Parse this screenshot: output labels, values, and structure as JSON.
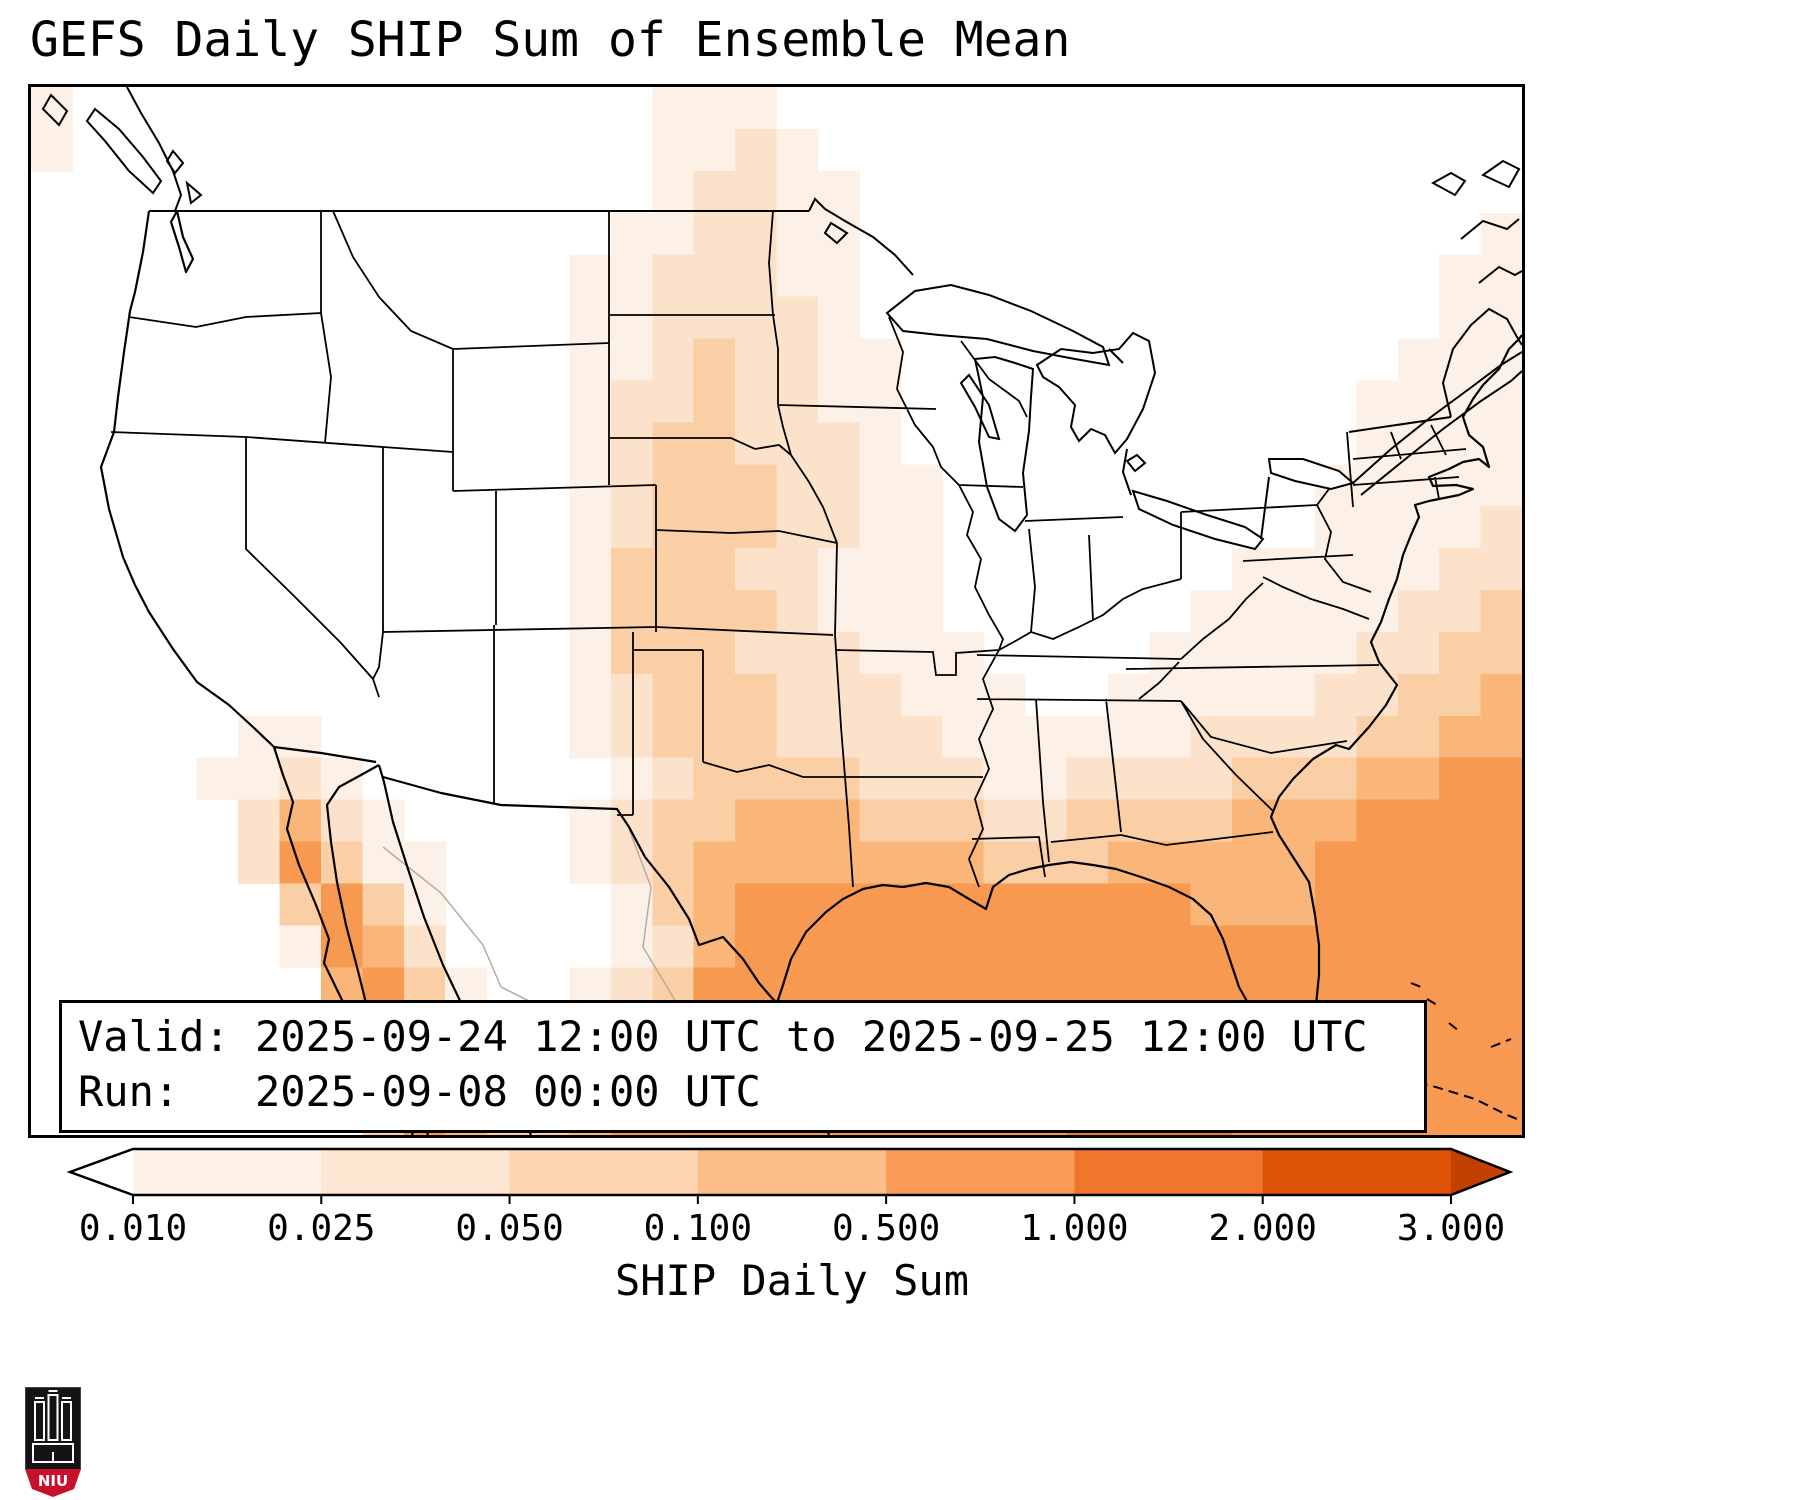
{
  "title": "GEFS Daily SHIP Sum of Ensemble Mean",
  "info_box": {
    "line1": "Valid: 2025-09-24 12:00 UTC to 2025-09-25 12:00 UTC",
    "line2": "Run:   2025-09-08 00:00 UTC"
  },
  "colorbar": {
    "label": "SHIP Daily Sum",
    "tick_labels": [
      "0.010",
      "0.025",
      "0.050",
      "0.100",
      "0.500",
      "1.000",
      "2.000",
      "3.000"
    ],
    "segment_colors": [
      "#fff3e8",
      "#fde7d2",
      "#fdd5b0",
      "#fdbd89",
      "#fa9b58",
      "#f0762b",
      "#dd5205"
    ],
    "under_color": "#ffffff",
    "over_color": "#c34001"
  },
  "logo": {
    "text": "NIU",
    "shield_color": "#141414",
    "band_color": "#c8102e"
  },
  "chart_data": {
    "type": "heatmap",
    "title": "GEFS Daily SHIP Sum of Ensemble Mean",
    "colorbar_label": "SHIP Daily Sum",
    "levels": [
      0.01,
      0.025,
      0.05,
      0.1,
      0.5,
      1.0,
      2.0,
      3.0
    ],
    "valid": "2025-09-24 12:00 UTC to 2025-09-25 12:00 UTC",
    "run": "2025-09-08 00:00 UTC",
    "grid": {
      "cols": 36,
      "rows": 25,
      "encoding": "each digit indexes level_colors; 0 = below 0.010 (white)",
      "level_colors": [
        "#ffffff",
        "#fdf1e7",
        "#fce2cb",
        "#fbcfa6",
        "#f9b678",
        "#f79950",
        "#ef7a32"
      ],
      "rows_data": [
        "100000000000000111000000000000000000",
        "100000000000000112100000000000000000",
        "000000000000000122110000000000000000",
        "000000000000001122110000000000000001",
        "000000000000011222110000000000000011",
        "000000000000011222210000000000000011",
        "000000000000011232211000000000000111",
        "000000000000012232211000000000001111",
        "000000000000012332221000000000001111",
        "000000000000012333221100000000011111",
        "000000000000012333221100000000011112",
        "000000000000013332211100000001111122",
        "000000000000013333211100000011111223",
        "000000000000013332221110000111112233",
        "000000000000012333222111001111122334",
        "000001100000012333222211111122223344",
        "000011210000001233332221122223334455",
        "000002421000012334443332233334445555",
        "000002531100012344444443334444455555",
        "000000353100001345555555555544455555",
        "000000154200001245555555555555555555",
        "000000045310012355555555555555555555",
        "000000025420123455555555555555555555",
        "000000004532234555555555555555555555",
        "000000003543345555555555566665555555"
      ]
    }
  }
}
